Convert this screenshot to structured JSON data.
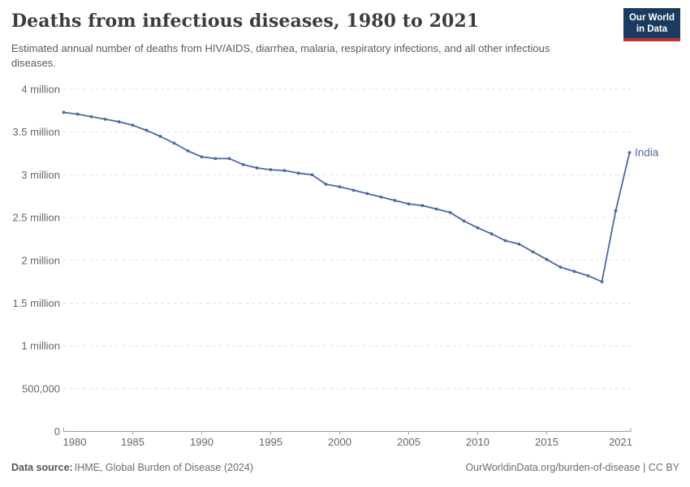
{
  "header": {
    "title": "Deaths from infectious diseases, 1980 to 2021",
    "subtitle": "Estimated annual number of deaths from HIV/AIDS, diarrhea, malaria, respiratory infections, and all other infectious diseases.",
    "logo": {
      "line1": "Our World",
      "line2": "in Data"
    }
  },
  "chart_data": {
    "type": "line",
    "title": "Deaths from infectious diseases, 1980 to 2021",
    "xlabel": "",
    "ylabel": "",
    "xlim": [
      1980,
      2021
    ],
    "ylim": [
      0,
      4000000
    ],
    "grid": "horizontal-dashed",
    "legend_position": "end-of-line-label",
    "x_ticks": [
      1980,
      1985,
      1990,
      1995,
      2000,
      2005,
      2010,
      2015,
      2021
    ],
    "y_ticks": [
      {
        "value": 0,
        "label": "0"
      },
      {
        "value": 500000,
        "label": "500,000"
      },
      {
        "value": 1000000,
        "label": "1 million"
      },
      {
        "value": 1500000,
        "label": "1.5 million"
      },
      {
        "value": 2000000,
        "label": "2 million"
      },
      {
        "value": 2500000,
        "label": "2.5 million"
      },
      {
        "value": 3000000,
        "label": "3 million"
      },
      {
        "value": 3500000,
        "label": "3.5 million"
      },
      {
        "value": 4000000,
        "label": "4 million"
      }
    ],
    "series": [
      {
        "name": "India",
        "color": "#4a69a2",
        "x": [
          1980,
          1981,
          1982,
          1983,
          1984,
          1985,
          1986,
          1987,
          1988,
          1989,
          1990,
          1991,
          1992,
          1993,
          1994,
          1995,
          1996,
          1997,
          1998,
          1999,
          2000,
          2001,
          2002,
          2003,
          2004,
          2005,
          2006,
          2007,
          2008,
          2009,
          2010,
          2011,
          2012,
          2013,
          2014,
          2015,
          2016,
          2017,
          2018,
          2019,
          2020,
          2021
        ],
        "values": [
          3730000,
          3710000,
          3680000,
          3650000,
          3620000,
          3580000,
          3520000,
          3450000,
          3370000,
          3280000,
          3210000,
          3190000,
          3190000,
          3120000,
          3080000,
          3060000,
          3050000,
          3020000,
          3000000,
          2890000,
          2860000,
          2820000,
          2780000,
          2740000,
          2700000,
          2660000,
          2640000,
          2600000,
          2560000,
          2460000,
          2380000,
          2310000,
          2230000,
          2190000,
          2100000,
          2010000,
          1920000,
          1870000,
          1820000,
          1750000,
          2580000,
          3260000
        ]
      }
    ]
  },
  "footer": {
    "source_label": "Data source:",
    "source_text": "IHME, Global Burden of Disease (2024)",
    "right_text": "OurWorldinData.org/burden-of-disease | CC BY"
  }
}
